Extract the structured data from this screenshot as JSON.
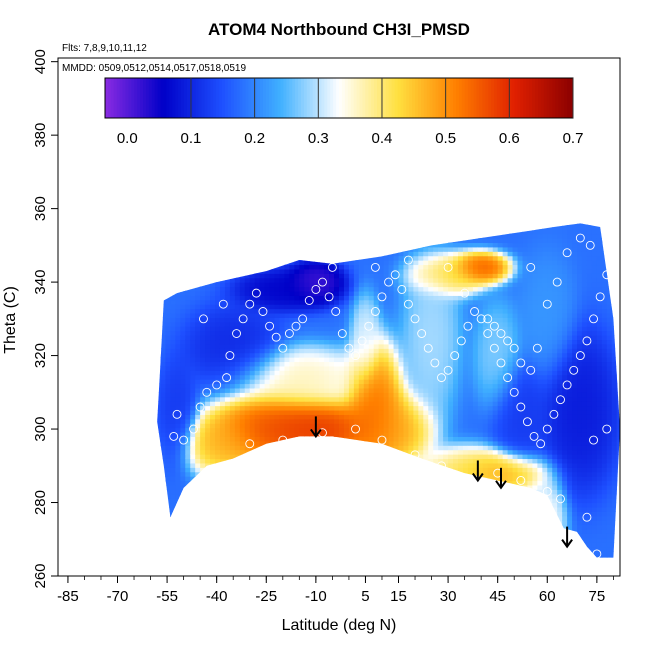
{
  "chart_data": {
    "type": "heatmap",
    "title": "ATOM4 Northbound CH3I_PMSD",
    "xlabel": "Latitude (deg N)",
    "ylabel": "Theta (C)",
    "annotations": {
      "flights": "Flts: 7,8,9,10,11,12",
      "dates": "MMDD: 0509,0512,0514,0517,0518,0519"
    },
    "xlim": [
      -88,
      82
    ],
    "ylim": [
      260,
      401
    ],
    "x_ticks_labeled": [
      "-85",
      "-70",
      "-55",
      "-40",
      "-25",
      "-10",
      "5",
      "15",
      "30",
      "45",
      "60",
      "75"
    ],
    "x_tick_values": [
      -85,
      -70,
      -55,
      -40,
      -25,
      -10,
      5,
      15,
      30,
      45,
      60,
      75
    ],
    "y_ticks_labeled": [
      "260",
      "280",
      "300",
      "320",
      "340",
      "360",
      "380",
      "400"
    ],
    "y_tick_values": [
      260,
      280,
      300,
      320,
      340,
      360,
      380,
      400
    ],
    "colorbar": {
      "min": -0.035,
      "max": 0.7,
      "ticks": [
        "0.0",
        "0.1",
        "0.2",
        "0.3",
        "0.4",
        "0.5",
        "0.6",
        "0.7"
      ],
      "tick_values": [
        0,
        0.1,
        0.2,
        0.3,
        0.4,
        0.5,
        0.6,
        0.7
      ],
      "colors": [
        "#8a2be2",
        "#0000c8",
        "#1e50ff",
        "#40b0ff",
        "#ffffff",
        "#ffe040",
        "#ff8000",
        "#e02000",
        "#8b0000"
      ]
    },
    "field": {
      "boundary": [
        [
          -56,
          335
        ],
        [
          -52,
          337
        ],
        [
          -40,
          340
        ],
        [
          -25,
          343
        ],
        [
          -15,
          346
        ],
        [
          -5,
          345
        ],
        [
          10,
          347
        ],
        [
          25,
          350
        ],
        [
          40,
          352
        ],
        [
          55,
          354
        ],
        [
          62,
          355
        ],
        [
          70,
          356
        ],
        [
          76,
          355
        ],
        [
          80,
          330
        ],
        [
          82,
          300
        ],
        [
          80,
          265
        ],
        [
          75,
          265
        ],
        [
          72,
          268
        ],
        [
          69,
          272
        ],
        [
          65,
          273
        ],
        [
          60,
          282
        ],
        [
          55,
          284
        ],
        [
          45,
          286
        ],
        [
          35,
          288
        ],
        [
          22,
          292
        ],
        [
          10,
          296
        ],
        [
          -5,
          298
        ],
        [
          -15,
          298
        ],
        [
          -25,
          296
        ],
        [
          -35,
          292
        ],
        [
          -43,
          290
        ],
        [
          -50,
          284
        ],
        [
          -54,
          276
        ],
        [
          -56,
          290
        ],
        [
          -58,
          302
        ],
        [
          -57,
          318
        ]
      ],
      "blobs": [
        {
          "lat": -10,
          "theta": 300,
          "value": 0.62,
          "rlat": 14,
          "rth": 6
        },
        {
          "lat": -25,
          "theta": 300,
          "value": 0.58,
          "rlat": 12,
          "rth": 7
        },
        {
          "lat": 8,
          "theta": 306,
          "value": 0.56,
          "rlat": 6,
          "rth": 12
        },
        {
          "lat": 14,
          "theta": 300,
          "value": 0.5,
          "rlat": 8,
          "rth": 7
        },
        {
          "lat": -38,
          "theta": 296,
          "value": 0.48,
          "rlat": 8,
          "rth": 6
        },
        {
          "lat": 45,
          "theta": 288,
          "value": 0.5,
          "rlat": 10,
          "rth": 4
        },
        {
          "lat": 35,
          "theta": 288,
          "value": 0.42,
          "rlat": 10,
          "rth": 5
        },
        {
          "lat": -15,
          "theta": 314,
          "value": 0.38,
          "rlat": 14,
          "rth": 6
        },
        {
          "lat": 30,
          "theta": 342,
          "value": 0.45,
          "rlat": 8,
          "rth": 4
        },
        {
          "lat": 40,
          "theta": 344,
          "value": 0.58,
          "rlat": 6,
          "rth": 3
        },
        {
          "lat": 5,
          "theta": 325,
          "value": 0.32,
          "rlat": 3,
          "rth": 8
        },
        {
          "lat": 60,
          "theta": 276,
          "value": 0.35,
          "rlat": 4,
          "rth": 8
        },
        {
          "lat": 25,
          "theta": 325,
          "value": 0.3,
          "rlat": 6,
          "rth": 15
        },
        {
          "lat": 45,
          "theta": 320,
          "value": 0.28,
          "rlat": 5,
          "rth": 10
        },
        {
          "lat": 60,
          "theta": 330,
          "value": 0.22,
          "rlat": 6,
          "rth": 12
        },
        {
          "lat": -20,
          "theta": 338,
          "value": 0.05,
          "rlat": 10,
          "rth": 4
        },
        {
          "lat": -35,
          "theta": 322,
          "value": 0.1,
          "rlat": 10,
          "rth": 8
        },
        {
          "lat": -10,
          "theta": 340,
          "value": 0.0,
          "rlat": 6,
          "rth": 4
        },
        {
          "lat": 70,
          "theta": 305,
          "value": 0.08,
          "rlat": 8,
          "rth": 15
        },
        {
          "lat": 52,
          "theta": 305,
          "value": 0.12,
          "rlat": 6,
          "rth": 10
        },
        {
          "lat": -52,
          "theta": 305,
          "value": 0.12,
          "rlat": 4,
          "rth": 10
        }
      ],
      "background_value": 0.18
    },
    "points": [
      [
        -52,
        304
      ],
      [
        -53,
        298
      ],
      [
        -50,
        297
      ],
      [
        -47,
        300
      ],
      [
        -45,
        306
      ],
      [
        -43,
        310
      ],
      [
        -40,
        312
      ],
      [
        -37,
        314
      ],
      [
        -36,
        320
      ],
      [
        -34,
        326
      ],
      [
        -32,
        330
      ],
      [
        -30,
        334
      ],
      [
        -28,
        337
      ],
      [
        -26,
        332
      ],
      [
        -24,
        328
      ],
      [
        -22,
        325
      ],
      [
        -20,
        322
      ],
      [
        -18,
        326
      ],
      [
        -16,
        328
      ],
      [
        -14,
        330
      ],
      [
        -12,
        335
      ],
      [
        -10,
        338
      ],
      [
        -8,
        340
      ],
      [
        -6,
        336
      ],
      [
        -4,
        332
      ],
      [
        -2,
        326
      ],
      [
        0,
        322
      ],
      [
        2,
        320
      ],
      [
        4,
        324
      ],
      [
        6,
        328
      ],
      [
        8,
        332
      ],
      [
        10,
        336
      ],
      [
        12,
        340
      ],
      [
        14,
        342
      ],
      [
        16,
        338
      ],
      [
        18,
        334
      ],
      [
        20,
        330
      ],
      [
        22,
        326
      ],
      [
        24,
        322
      ],
      [
        26,
        318
      ],
      [
        28,
        314
      ],
      [
        30,
        316
      ],
      [
        32,
        320
      ],
      [
        34,
        324
      ],
      [
        36,
        328
      ],
      [
        38,
        332
      ],
      [
        40,
        330
      ],
      [
        42,
        326
      ],
      [
        44,
        322
      ],
      [
        46,
        318
      ],
      [
        48,
        314
      ],
      [
        50,
        310
      ],
      [
        52,
        306
      ],
      [
        54,
        302
      ],
      [
        56,
        298
      ],
      [
        58,
        296
      ],
      [
        60,
        300
      ],
      [
        62,
        304
      ],
      [
        64,
        308
      ],
      [
        66,
        312
      ],
      [
        68,
        316
      ],
      [
        70,
        320
      ],
      [
        72,
        324
      ],
      [
        74,
        330
      ],
      [
        76,
        336
      ],
      [
        78,
        342
      ],
      [
        73,
        350
      ],
      [
        70,
        352
      ],
      [
        66,
        348
      ],
      [
        63,
        340
      ],
      [
        60,
        334
      ],
      [
        57,
        322
      ],
      [
        55,
        316
      ],
      [
        52,
        318
      ],
      [
        50,
        322
      ],
      [
        48,
        324
      ],
      [
        46,
        326
      ],
      [
        44,
        328
      ],
      [
        42,
        330
      ],
      [
        -30,
        296
      ],
      [
        -20,
        297
      ],
      [
        -8,
        299
      ],
      [
        2,
        300
      ],
      [
        10,
        297
      ],
      [
        20,
        293
      ],
      [
        28,
        290
      ],
      [
        45,
        288
      ],
      [
        52,
        286
      ],
      [
        60,
        283
      ],
      [
        64,
        281
      ],
      [
        74,
        297
      ],
      [
        78,
        300
      ],
      [
        72,
        276
      ],
      [
        68,
        268
      ],
      [
        75,
        266
      ],
      [
        -44,
        330
      ],
      [
        -38,
        334
      ],
      [
        -5,
        344
      ],
      [
        8,
        344
      ],
      [
        18,
        346
      ],
      [
        30,
        344
      ],
      [
        35,
        337
      ],
      [
        55,
        344
      ]
    ],
    "arrows": [
      {
        "lat": -10,
        "theta": 298
      },
      {
        "lat": 39,
        "theta": 286
      },
      {
        "lat": 46,
        "theta": 284
      },
      {
        "lat": 66,
        "theta": 268
      }
    ]
  }
}
